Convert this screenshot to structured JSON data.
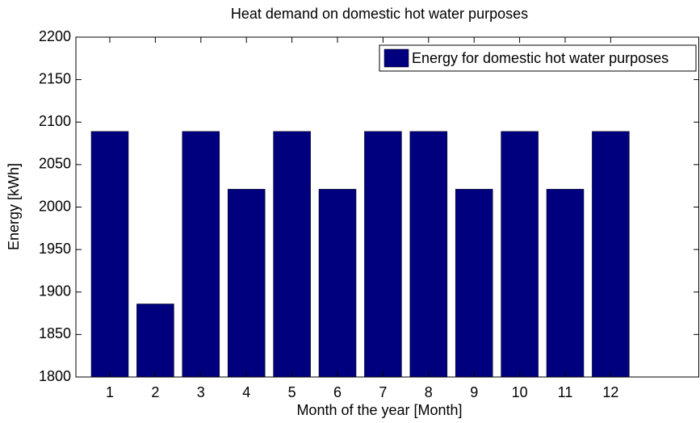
{
  "chart_data": {
    "type": "bar",
    "title": "Heat demand on domestic hot water purposes",
    "x_label": "Month of the year [Month]",
    "y_label": "Energy [kWh]",
    "categories": [
      "1",
      "2",
      "3",
      "4",
      "5",
      "6",
      "7",
      "8",
      "9",
      "10",
      "11",
      "12"
    ],
    "series": [
      {
        "name": "Energy for domestic hot water purposes",
        "color": "#00007f",
        "values": [
          2089,
          1886,
          2089,
          2021,
          2089,
          2021,
          2089,
          2089,
          2021,
          2089,
          2021,
          2089
        ]
      }
    ],
    "ylim": [
      1800,
      2200
    ],
    "yticks": [
      1800,
      1850,
      1900,
      1950,
      2000,
      2050,
      2100,
      2150,
      2200
    ],
    "legend": "upper right"
  }
}
